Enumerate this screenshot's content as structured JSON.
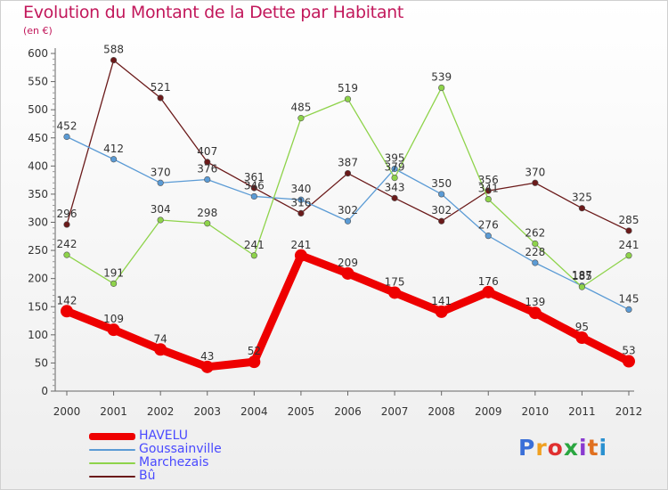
{
  "header": {
    "title": "Evolution du Montant de la Dette par Habitant",
    "unit": "(en €)"
  },
  "logo": {
    "text": "Proxiti",
    "colors": [
      "#3a6fd8",
      "#f0a020",
      "#e03030",
      "#2aa640",
      "#8a3ad0",
      "#e07020",
      "#2a90d0"
    ]
  },
  "chart_data": {
    "type": "line",
    "title": "Evolution du Montant de la Dette par Habitant",
    "ylabel": "(en €)",
    "xlabel": "",
    "categories": [
      "2000",
      "2001",
      "2002",
      "2003",
      "2004",
      "2005",
      "2006",
      "2007",
      "2008",
      "2009",
      "2010",
      "2011",
      "2012"
    ],
    "ylim": [
      0,
      600
    ],
    "yticks": [
      0,
      50,
      100,
      150,
      200,
      250,
      300,
      350,
      400,
      450,
      500,
      550,
      600
    ],
    "grid": false,
    "legend": "bottom-left",
    "series": [
      {
        "name": "HAVELU",
        "color": "#ee0000",
        "values": [
          142,
          109,
          74,
          43,
          52,
          241,
          209,
          175,
          141,
          176,
          139,
          95,
          53
        ]
      },
      {
        "name": "Goussainville",
        "color": "#5b9bd5",
        "values": [
          452,
          412,
          370,
          376,
          346,
          340,
          302,
          395,
          350,
          276,
          228,
          187,
          145
        ]
      },
      {
        "name": "Marchezais",
        "color": "#8ed34a",
        "values": [
          242,
          191,
          304,
          298,
          241,
          485,
          519,
          379,
          539,
          341,
          262,
          185,
          241
        ]
      },
      {
        "name": "Bû",
        "color": "#6b1a1a",
        "values": [
          296,
          588,
          521,
          407,
          361,
          316,
          387,
          343,
          302,
          356,
          370,
          325,
          285
        ]
      }
    ]
  }
}
